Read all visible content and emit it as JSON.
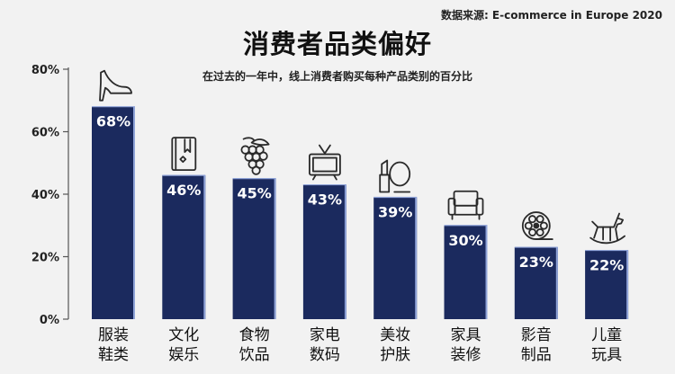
{
  "source": "数据来源: E-commerce in Europe 2020",
  "chart_data": {
    "type": "bar",
    "title": "消费者品类偏好",
    "subtitle": "在过去的一年中，线上消费者购买每种产品类别的百分比",
    "categories": [
      [
        "服装",
        "鞋类"
      ],
      [
        "文化",
        "娱乐"
      ],
      [
        "食物",
        "饮品"
      ],
      [
        "家电",
        "数码"
      ],
      [
        "美妆",
        "护肤"
      ],
      [
        "家具",
        "装修"
      ],
      [
        "影音",
        "制品"
      ],
      [
        "儿童",
        "玩具"
      ]
    ],
    "values": [
      68,
      46,
      45,
      43,
      39,
      30,
      23,
      22
    ],
    "data_labels": [
      "68%",
      "46%",
      "45%",
      "43%",
      "39%",
      "30%",
      "23%",
      "22%"
    ],
    "icons": [
      "high-heel-shoe-icon",
      "book-icon",
      "grapes-icon",
      "tv-icon",
      "cosmetics-icon",
      "sofa-icon",
      "film-reel-icon",
      "rocking-horse-icon"
    ],
    "yticks": [
      0,
      20,
      40,
      60,
      80
    ],
    "ytick_labels": [
      "0%",
      "20%",
      "40%",
      "60%",
      "80%"
    ],
    "ylim": [
      0,
      80
    ],
    "grid": false,
    "colors": {
      "bar": "#1b2a5e",
      "bar_edge": "#8fa3d8",
      "icon": "#2a2a2a"
    }
  }
}
